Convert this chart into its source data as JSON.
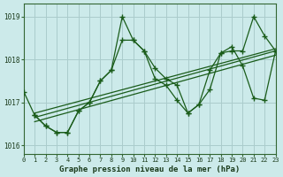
{
  "title": "Graphe pression niveau de la mer (hPa)",
  "bg_color": "#cceaea",
  "grid_color": "#aacccc",
  "line_color": "#1a5c1a",
  "xlim": [
    0,
    23
  ],
  "ylim": [
    1015.8,
    1019.3
  ],
  "yticks": [
    1016,
    1017,
    1018,
    1019
  ],
  "xticks": [
    0,
    1,
    2,
    3,
    4,
    5,
    6,
    7,
    8,
    9,
    10,
    11,
    12,
    13,
    14,
    15,
    16,
    17,
    18,
    19,
    20,
    21,
    22,
    23
  ],
  "series1_x": [
    0,
    1,
    2,
    3,
    4,
    5,
    6,
    7,
    8,
    9,
    10,
    11,
    12,
    13,
    14,
    15,
    16,
    17,
    18,
    19,
    20,
    21,
    22,
    23
  ],
  "series1_y": [
    1017.25,
    1016.7,
    1016.45,
    1016.3,
    1016.3,
    1016.8,
    1017.0,
    1017.5,
    1017.75,
    1019.0,
    1018.45,
    1018.2,
    1017.55,
    1017.4,
    1017.05,
    1016.75,
    1016.95,
    1017.3,
    1018.15,
    1018.2,
    1018.2,
    1019.0,
    1018.55,
    1018.2
  ],
  "series2_x": [
    1,
    2,
    3,
    4,
    5,
    6,
    7,
    8,
    9,
    10,
    11,
    12,
    13,
    14,
    15,
    16,
    17,
    18,
    19,
    20,
    21,
    22,
    23
  ],
  "series2_y": [
    1016.7,
    1016.45,
    1016.3,
    1016.3,
    1016.8,
    1017.0,
    1017.5,
    1017.75,
    1018.45,
    1018.45,
    1018.2,
    1017.8,
    1017.55,
    1017.4,
    1016.75,
    1016.95,
    1017.75,
    1018.15,
    1018.3,
    1017.85,
    1017.1,
    1017.05,
    1018.2
  ],
  "trend1_x": [
    1,
    23
  ],
  "trend1_y": [
    1016.75,
    1018.25
  ],
  "trend2_x": [
    1,
    23
  ],
  "trend2_y": [
    1016.65,
    1018.2
  ],
  "trend3_x": [
    1,
    23
  ],
  "trend3_y": [
    1016.55,
    1018.1
  ]
}
